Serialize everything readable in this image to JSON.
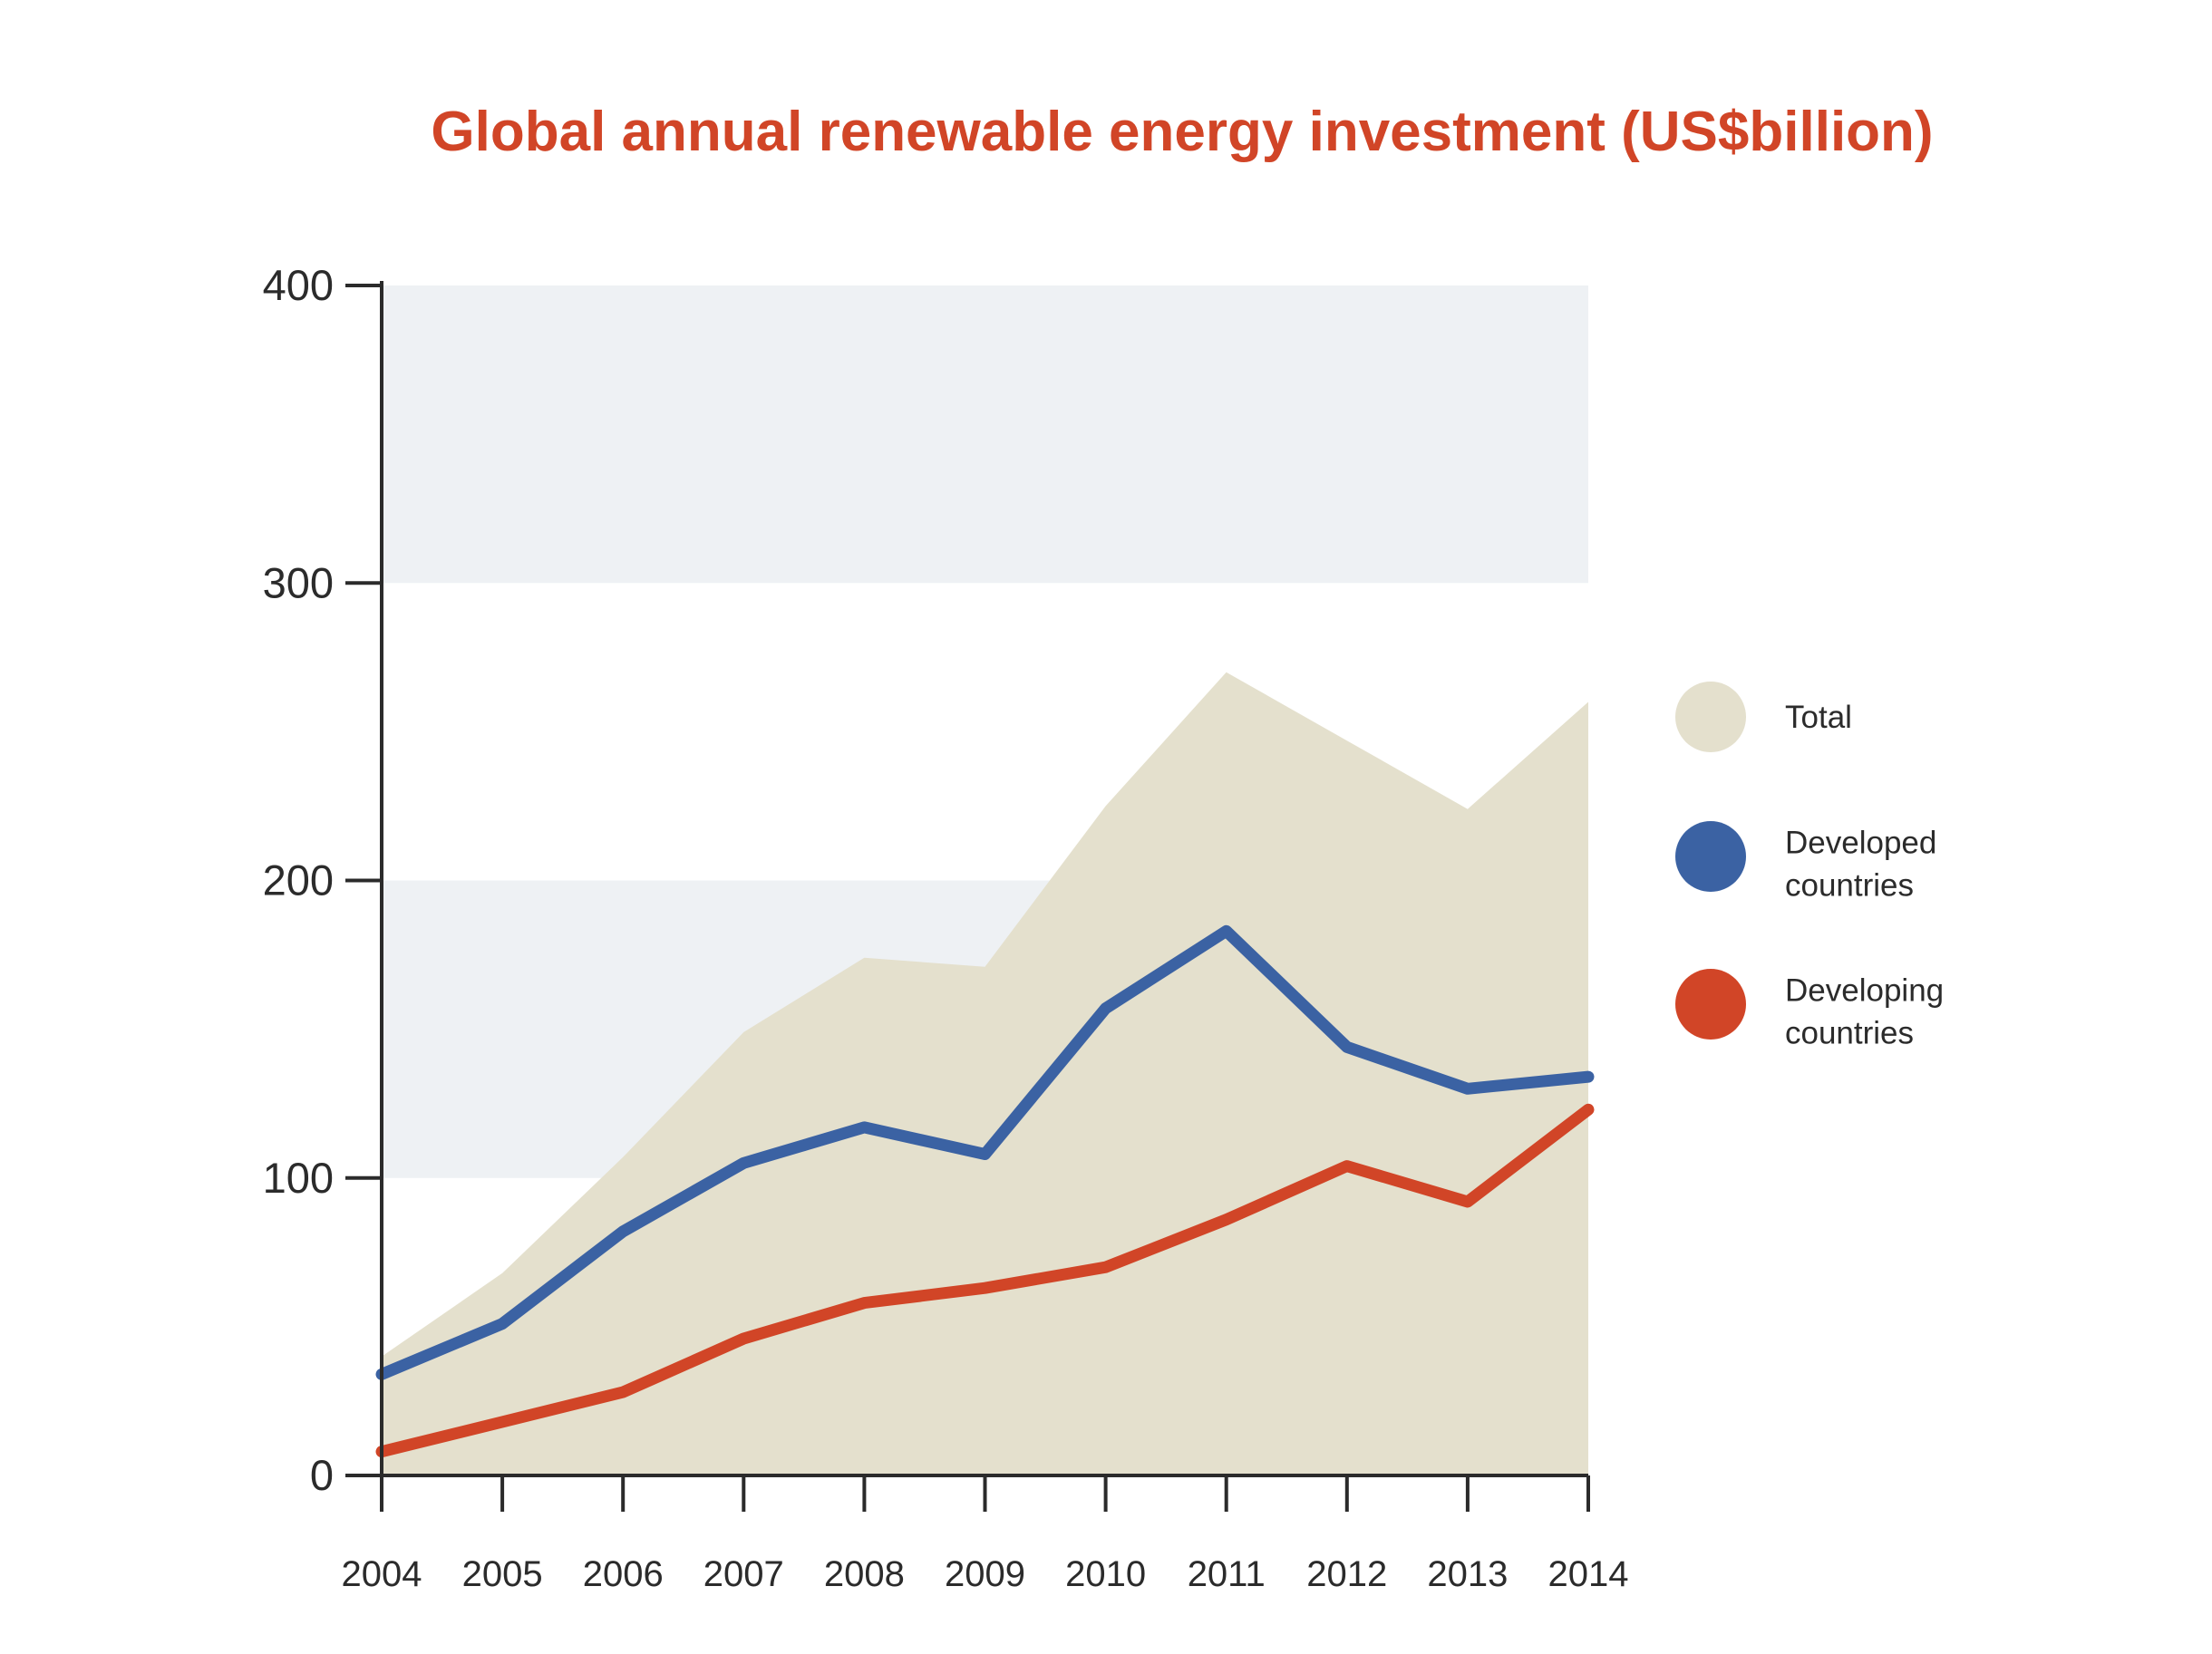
{
  "chart_data": {
    "type": "line",
    "title": "Global annual renewable energy investment (US$billion)",
    "xlabel": "",
    "ylabel": "",
    "ylim": [
      0,
      400
    ],
    "yticks": [
      "0",
      "100",
      "200",
      "300",
      "400"
    ],
    "categories": [
      "2004",
      "2005",
      "2006",
      "2007",
      "2008",
      "2009",
      "2010",
      "2011",
      "2012",
      "2013",
      "2014"
    ],
    "grid": "alternating horizontal bands",
    "legend_position": "right",
    "series": [
      {
        "name": "Total",
        "kind": "area",
        "color": "#e4e0cd",
        "values": [
          40,
          68,
          107,
          149,
          174,
          171,
          225,
          270,
          247,
          224,
          260
        ]
      },
      {
        "name": "Developed countries",
        "kind": "line",
        "color": "#3b62a3",
        "values": [
          34,
          51,
          82,
          105,
          117,
          108,
          157,
          183,
          144,
          130,
          134
        ]
      },
      {
        "name": "Developing countries",
        "kind": "line",
        "color": "#d14527",
        "values": [
          8,
          18,
          28,
          46,
          58,
          63,
          70,
          86,
          104,
          92,
          123
        ]
      }
    ],
    "legend": [
      {
        "label_lines": [
          "Total"
        ],
        "color": "#e4e0cd"
      },
      {
        "label_lines": [
          "Developed",
          "countries"
        ],
        "color": "#3b62a3"
      },
      {
        "label_lines": [
          "Developing",
          "countries"
        ],
        "color": "#d14527"
      }
    ],
    "band_color": "#eef1f4",
    "axis_color": "#2b2b2b"
  }
}
